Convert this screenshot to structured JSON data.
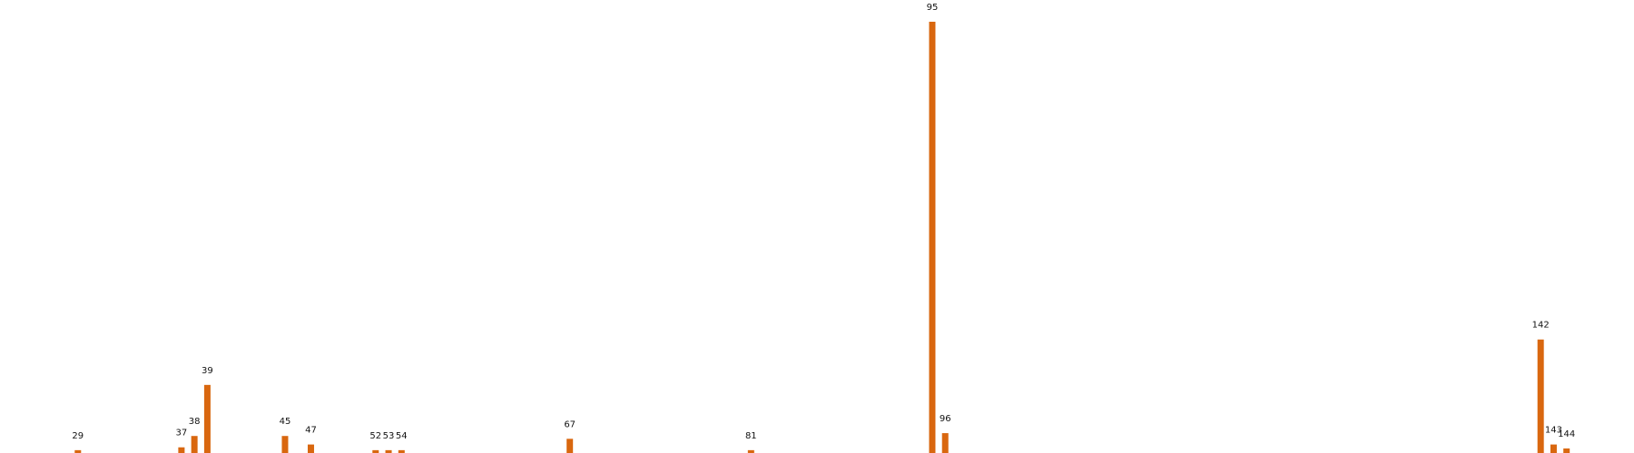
{
  "chart_data": {
    "type": "bar",
    "title": "",
    "xlabel": "",
    "ylabel": "",
    "grid": false,
    "legend": "none",
    "bar_color": "#d9670f",
    "xlim": [
      28,
      145
    ],
    "ylim": [
      0,
      7.6
    ],
    "categories": [
      "29",
      "37",
      "38",
      "39",
      "45",
      "47",
      "52",
      "53",
      "54",
      "67",
      "81",
      "95",
      "96",
      "142",
      "143",
      "144"
    ],
    "x": [
      29,
      37,
      38,
      39,
      45,
      47,
      52,
      53,
      54,
      67,
      81,
      95,
      96,
      142,
      143,
      144
    ],
    "values": [
      0.05,
      0.1,
      0.3,
      1.2,
      0.3,
      0.15,
      0.05,
      0.05,
      0.05,
      0.25,
      0.05,
      7.6,
      0.35,
      2.0,
      0.15,
      0.08
    ],
    "data_labels": [
      "29",
      "37",
      "38",
      "39",
      "45",
      "47",
      "52",
      "53",
      "54",
      "67",
      "81",
      "95",
      "96",
      "142",
      "143",
      "144"
    ]
  }
}
